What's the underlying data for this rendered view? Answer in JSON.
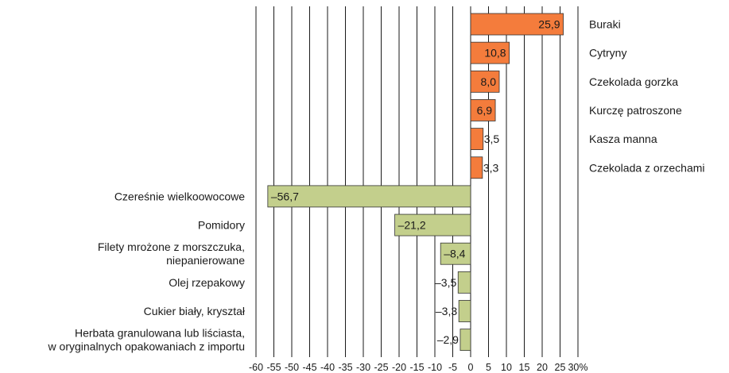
{
  "chart_data": {
    "type": "bar",
    "orientation": "horizontal",
    "title": "",
    "xlabel": "",
    "ylabel": "",
    "xlim": [
      -60,
      30
    ],
    "grid": true,
    "categories": [
      "Buraki",
      "Cytryny",
      "Czekolada gorzka",
      "Kurczę patroszone",
      "Kasza manna",
      "Czekolada z orzechami",
      "Czereśnie wielkoowocowe",
      "Pomidory",
      "Filety mrożone z morszczuka, niepanierowane",
      "Olej rzepakowy",
      "Cukier biały, kryształ",
      "Herbata granulowana lub liściasta, w oryginalnych opakowaniach z importu"
    ],
    "category_lines": [
      [
        "Buraki"
      ],
      [
        "Cytryny"
      ],
      [
        "Czekolada gorzka"
      ],
      [
        "Kurczę patroszone"
      ],
      [
        "Kasza manna"
      ],
      [
        "Czekolada z orzechami"
      ],
      [
        "Czereśnie wielkoowocowe"
      ],
      [
        "Pomidory"
      ],
      [
        "Filety mrożone z morszczuka,",
        "niepanierowane"
      ],
      [
        "Olej rzepakowy"
      ],
      [
        "Cukier biały, kryształ"
      ],
      [
        "Herbata granulowana lub liściasta,",
        "w oryginalnych opakowaniach z importu"
      ]
    ],
    "values": [
      25.9,
      10.8,
      8.0,
      6.9,
      3.5,
      3.3,
      -56.7,
      -21.2,
      -8.4,
      -3.5,
      -3.3,
      -2.9
    ],
    "value_labels": [
      "25,9",
      "10,8",
      "8,0",
      "6,9",
      "3,5",
      "3,3",
      "–56,7",
      "–21,2",
      "–8,4",
      "–3,5",
      "–3,3",
      "–2,9"
    ],
    "x_ticks": [
      -60,
      -55,
      -50,
      -45,
      -40,
      -35,
      -30,
      -25,
      -20,
      -15,
      -10,
      -5,
      0,
      5,
      10,
      15,
      20,
      25,
      30
    ],
    "x_tick_labels": [
      "-60",
      "-55",
      "-50",
      "-45",
      "-40",
      "-35",
      "-30",
      "-25",
      "-20",
      "-15",
      "-10",
      "-5",
      "0",
      "5",
      "10",
      "15",
      "20",
      "25",
      "30%"
    ],
    "colors": {
      "positive": "#f47c3c",
      "negative": "#c3cf8c",
      "bar_stroke": "#333333",
      "grid": "#1a1a1a"
    }
  }
}
